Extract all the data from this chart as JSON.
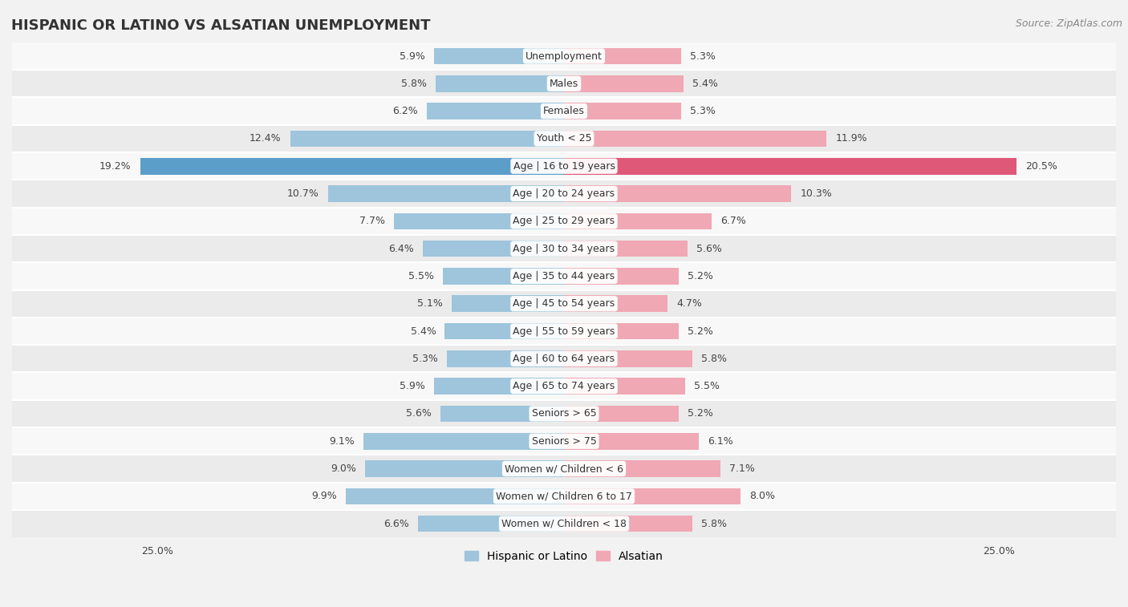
{
  "title": "HISPANIC OR LATINO VS ALSATIAN UNEMPLOYMENT",
  "source": "Source: ZipAtlas.com",
  "categories": [
    "Unemployment",
    "Males",
    "Females",
    "Youth < 25",
    "Age | 16 to 19 years",
    "Age | 20 to 24 years",
    "Age | 25 to 29 years",
    "Age | 30 to 34 years",
    "Age | 35 to 44 years",
    "Age | 45 to 54 years",
    "Age | 55 to 59 years",
    "Age | 60 to 64 years",
    "Age | 65 to 74 years",
    "Seniors > 65",
    "Seniors > 75",
    "Women w/ Children < 6",
    "Women w/ Children 6 to 17",
    "Women w/ Children < 18"
  ],
  "hispanic_values": [
    5.9,
    5.8,
    6.2,
    12.4,
    19.2,
    10.7,
    7.7,
    6.4,
    5.5,
    5.1,
    5.4,
    5.3,
    5.9,
    5.6,
    9.1,
    9.0,
    9.9,
    6.6
  ],
  "alsatian_values": [
    5.3,
    5.4,
    5.3,
    11.9,
    20.5,
    10.3,
    6.7,
    5.6,
    5.2,
    4.7,
    5.2,
    5.8,
    5.5,
    5.2,
    6.1,
    7.1,
    8.0,
    5.8
  ],
  "hispanic_color": "#9ec5dc",
  "alsatian_color": "#f0a8b4",
  "hispanic_highlight_color": "#5b9ec9",
  "alsatian_highlight_color": "#e05878",
  "highlight_row": 4,
  "x_max": 25.0,
  "bar_height": 0.6,
  "bg_color": "#f2f2f2",
  "row_bg_light": "#f8f8f8",
  "row_bg_dark": "#ebebeb",
  "legend_hispanic": "Hispanic or Latino",
  "legend_alsatian": "Alsatian",
  "label_fontsize": 9.0,
  "value_fontsize": 9.0,
  "title_fontsize": 13,
  "source_fontsize": 9
}
